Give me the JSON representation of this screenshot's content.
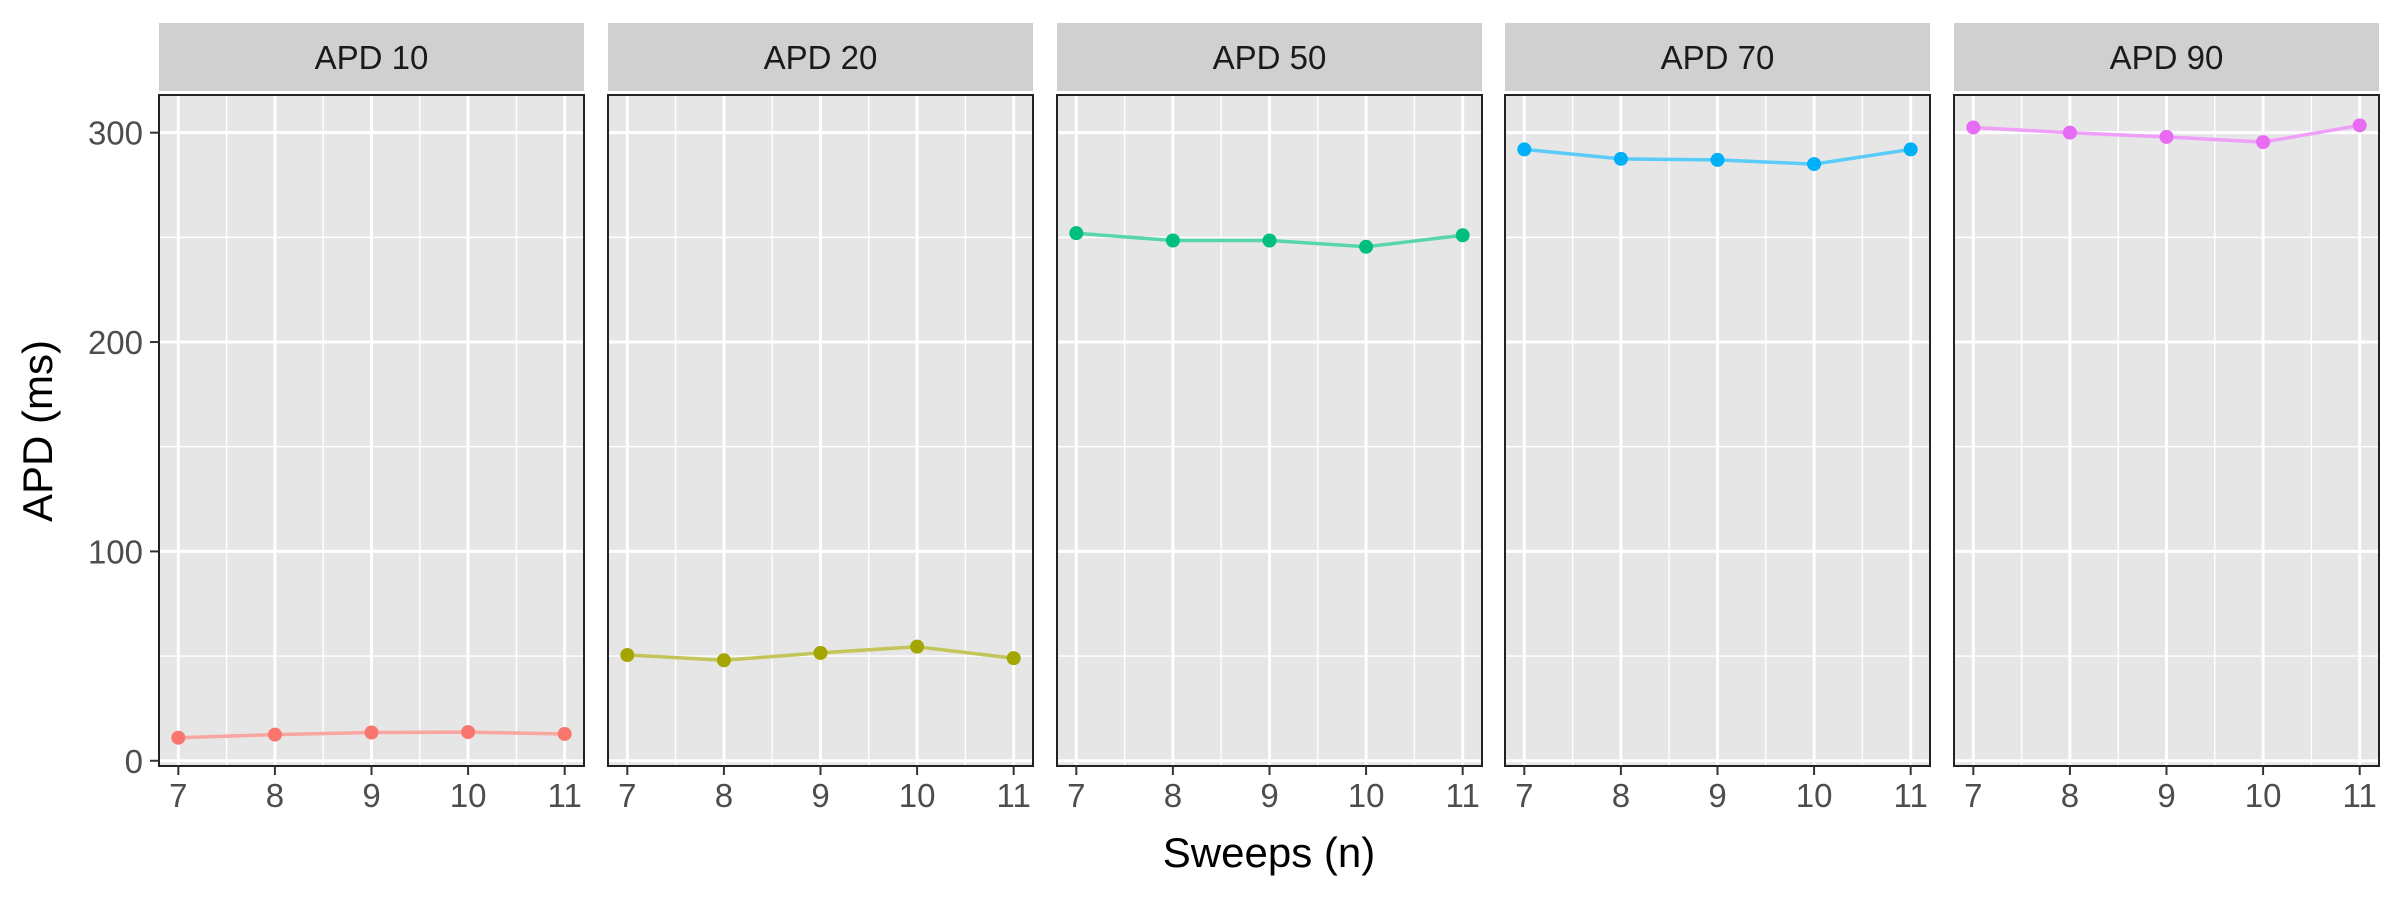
{
  "chart_data": {
    "type": "line",
    "layout": "facets",
    "xlabel": "Sweeps (n)",
    "ylabel": "APD (ms)",
    "xlim": [
      6.8,
      11.2
    ],
    "ylim": [
      -2.5,
      318
    ],
    "x_ticks": [
      7,
      8,
      9,
      10,
      11
    ],
    "y_ticks": [
      0,
      100,
      200,
      300
    ],
    "grid": true,
    "legend": "none",
    "panels": [
      {
        "label": "APD 10",
        "color": "#f8766d",
        "x": [
          7,
          8,
          9,
          10,
          11
        ],
        "y": [
          11,
          12.5,
          13.5,
          13.7,
          12.8
        ]
      },
      {
        "label": "APD 20",
        "color": "#a3a500",
        "x": [
          7,
          8,
          9,
          10,
          11
        ],
        "y": [
          50.5,
          48,
          51.5,
          54.5,
          49
        ]
      },
      {
        "label": "APD 50",
        "color": "#00bf7d",
        "x": [
          7,
          8,
          9,
          10,
          11
        ],
        "y": [
          252,
          248.5,
          248.5,
          245.5,
          251
        ]
      },
      {
        "label": "APD 70",
        "color": "#00b0f6",
        "x": [
          7,
          8,
          9,
          10,
          11
        ],
        "y": [
          292,
          287.5,
          287,
          285,
          292
        ]
      },
      {
        "label": "APD 90",
        "color": "#e76bf3",
        "x": [
          7,
          8,
          9,
          10,
          11
        ],
        "y": [
          302.5,
          300,
          298,
          295.5,
          303.5
        ]
      }
    ]
  }
}
